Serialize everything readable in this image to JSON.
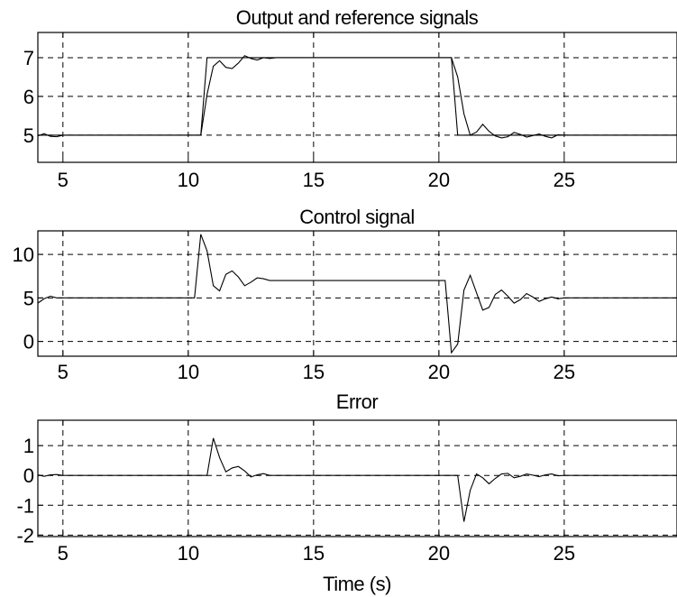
{
  "chart_data": [
    {
      "type": "line",
      "title": "Output and reference signals",
      "xlabel": "",
      "ylabel": "",
      "xlim": [
        4,
        29.5
      ],
      "ylim": [
        4.3,
        7.65
      ],
      "xticks": [
        5,
        10,
        15,
        20,
        25
      ],
      "yticks": [
        5,
        6,
        7
      ],
      "grid": true,
      "series": [
        {
          "x": [
            4,
            10.5,
            10.5,
            10.75,
            20.5,
            20.5,
            20.75,
            29.5
          ],
          "y": [
            5,
            5,
            5,
            7,
            7,
            7,
            5,
            5
          ]
        },
        {
          "x": [
            4,
            4.25,
            4.5,
            4.75,
            5,
            10.5,
            10.75,
            11,
            11.25,
            11.5,
            11.75,
            12,
            12.25,
            12.5,
            12.75,
            13,
            13.25,
            13.5,
            20.5,
            20.75,
            21,
            21.25,
            21.5,
            21.75,
            22,
            22.25,
            22.5,
            22.75,
            23,
            23.25,
            23.5,
            23.75,
            24,
            24.25,
            24.5,
            24.75,
            25,
            29.5
          ],
          "y": [
            4.98,
            5.04,
            4.97,
            4.96,
            5,
            5,
            6.05,
            6.78,
            6.92,
            6.75,
            6.72,
            6.86,
            7.05,
            6.98,
            6.94,
            7,
            6.98,
            7,
            7,
            6.5,
            5.55,
            5,
            5.08,
            5.28,
            5.1,
            4.98,
            4.93,
            4.96,
            5.07,
            5.02,
            4.95,
            4.99,
            5.03,
            4.97,
            4.93,
            5.01,
            5,
            5
          ]
        }
      ]
    },
    {
      "type": "line",
      "title": "Control signal",
      "xlabel": "",
      "ylabel": "",
      "xlim": [
        4,
        29.5
      ],
      "ylim": [
        -1.7,
        12.7
      ],
      "xticks": [
        5,
        10,
        15,
        20,
        25
      ],
      "yticks": [
        0,
        5,
        10
      ],
      "grid": true,
      "series": [
        {
          "x": [
            4,
            4.25,
            4.5,
            4.75,
            5,
            10.25,
            10.5,
            10.75,
            11,
            11.25,
            11.5,
            11.75,
            12,
            12.25,
            12.5,
            12.75,
            13,
            13.25,
            13.5,
            20.25,
            20.5,
            20.75,
            21,
            21.25,
            21.5,
            21.75,
            22,
            22.25,
            22.5,
            22.75,
            23,
            23.25,
            23.5,
            23.75,
            24,
            24.25,
            24.5,
            24.75,
            25,
            29.5
          ],
          "y": [
            4.4,
            4.9,
            5.2,
            5.0,
            5,
            5,
            12.3,
            10.4,
            6.4,
            5.8,
            7.7,
            8.1,
            7.4,
            6.4,
            6.8,
            7.3,
            7.2,
            7,
            7,
            7,
            -1.3,
            -0.3,
            5.9,
            7.6,
            5.6,
            3.6,
            3.9,
            5.4,
            5.9,
            5.2,
            4.4,
            4.8,
            5.5,
            5.1,
            4.6,
            4.9,
            5.1,
            4.9,
            5,
            5
          ]
        }
      ]
    },
    {
      "type": "line",
      "title": "Error",
      "xlabel": "Time (s)",
      "ylabel": "",
      "xlim": [
        4,
        29.5
      ],
      "ylim": [
        -2.05,
        1.85
      ],
      "xticks": [
        5,
        10,
        15,
        20,
        25
      ],
      "yticks": [
        -2,
        -1,
        0,
        1
      ],
      "grid": true,
      "series": [
        {
          "x": [
            4,
            4.25,
            4.5,
            4.75,
            5,
            10.75,
            11,
            11.25,
            11.5,
            11.75,
            12,
            12.25,
            12.5,
            12.75,
            13,
            13.25,
            13.5,
            20.75,
            21,
            21.25,
            21.5,
            21.75,
            22,
            22.25,
            22.5,
            22.75,
            23,
            23.25,
            23.5,
            23.75,
            24,
            24.25,
            24.5,
            24.75,
            25,
            29.5
          ],
          "y": [
            0.02,
            -0.03,
            0.02,
            0.03,
            0,
            0,
            1.25,
            0.6,
            0.12,
            0.25,
            0.3,
            0.15,
            -0.05,
            0.02,
            0.06,
            0,
            0,
            0,
            -1.55,
            -0.5,
            0.05,
            -0.08,
            -0.28,
            -0.1,
            0.05,
            0.07,
            -0.08,
            -0.03,
            0.05,
            0.01,
            -0.04,
            0.02,
            0.05,
            -0.01,
            0,
            0
          ]
        }
      ]
    }
  ]
}
